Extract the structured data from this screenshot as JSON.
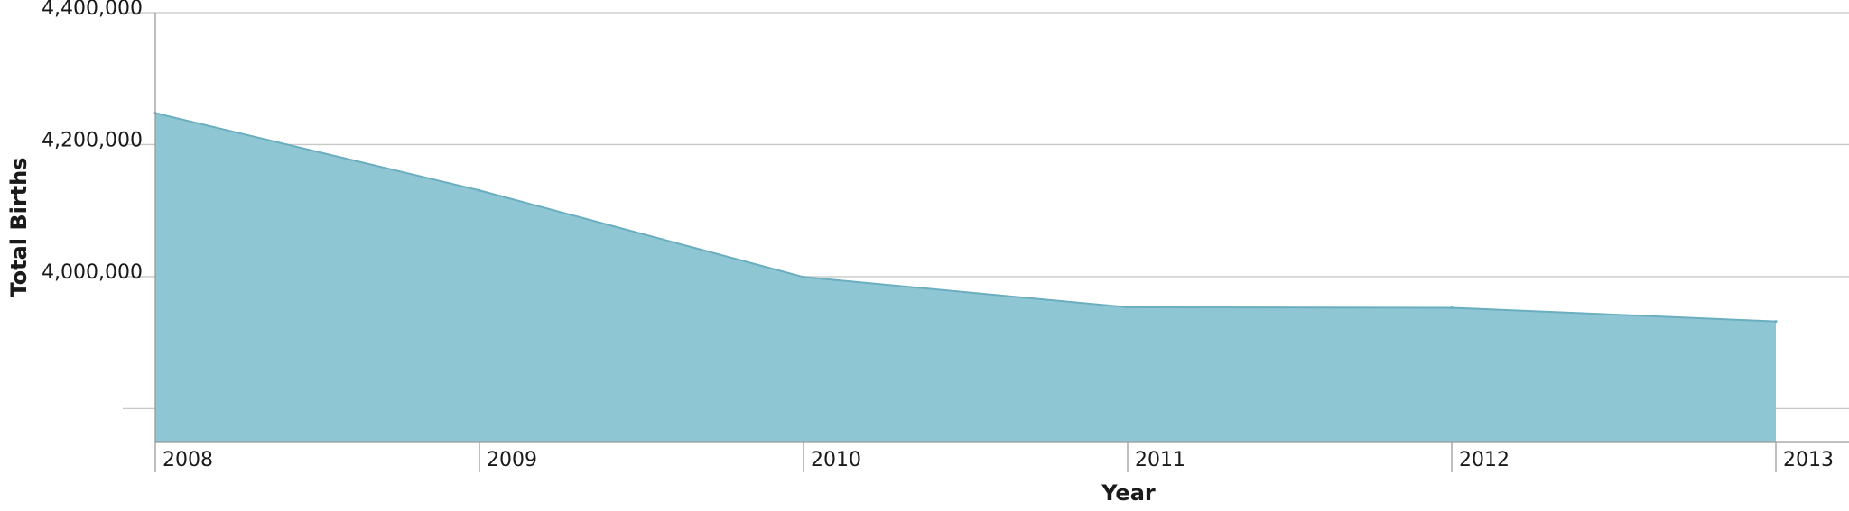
{
  "chart_data": {
    "type": "area",
    "xlabel": "Year",
    "ylabel": "Total Births",
    "x": [
      "2008",
      "2009",
      "2010",
      "2011",
      "2012",
      "2013"
    ],
    "series": [
      {
        "values": [
          4247694,
          4130665,
          3999386,
          3953590,
          3952841,
          3932181
        ]
      }
    ],
    "y_tick_values": [
      3800000,
      4000000,
      4200000,
      4400000
    ],
    "y_tick_labels": [
      "",
      "4,000,000",
      "4,200,000",
      "4,400,000"
    ],
    "ylim": [
      3750000,
      4400000
    ],
    "grid": true,
    "legend": "none",
    "fill_color": "#8fc6d4",
    "line_color": "#6aaebf"
  }
}
